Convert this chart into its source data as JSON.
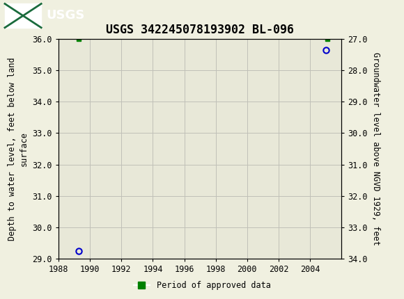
{
  "title": "USGS 342245078193902 BL-096",
  "ylabel_left": "Depth to water level, feet below land\nsurface",
  "ylabel_right": "Groundwater level above NGVD 1929, feet",
  "xlim": [
    1988,
    2006
  ],
  "ylim_left_top": 29.0,
  "ylim_left_bottom": 36.0,
  "ylim_right_top": 34.0,
  "ylim_right_bottom": 27.0,
  "xticks": [
    1988,
    1990,
    1992,
    1994,
    1996,
    1998,
    2000,
    2002,
    2004
  ],
  "yticks_left": [
    29.0,
    30.0,
    31.0,
    32.0,
    33.0,
    34.0,
    35.0,
    36.0
  ],
  "yticks_right": [
    34.0,
    33.0,
    32.0,
    31.0,
    30.0,
    29.0,
    28.0,
    27.0
  ],
  "blue_circle_points": [
    [
      1989.3,
      29.25
    ],
    [
      2005.0,
      35.65
    ]
  ],
  "green_square_points": [
    [
      1989.3,
      36.0
    ],
    [
      2005.1,
      36.0
    ]
  ],
  "blue_circle_color": "#0000cc",
  "green_square_color": "#008000",
  "plot_bg_color": "#e8e8d8",
  "fig_bg_color": "#f0f0e0",
  "header_color": "#1a6b3c",
  "grid_color": "#c0c0b8",
  "title_fontsize": 12,
  "axis_label_fontsize": 8.5,
  "tick_fontsize": 8.5,
  "legend_label": "Period of approved data",
  "figwidth": 5.8,
  "figheight": 4.3,
  "dpi": 100
}
